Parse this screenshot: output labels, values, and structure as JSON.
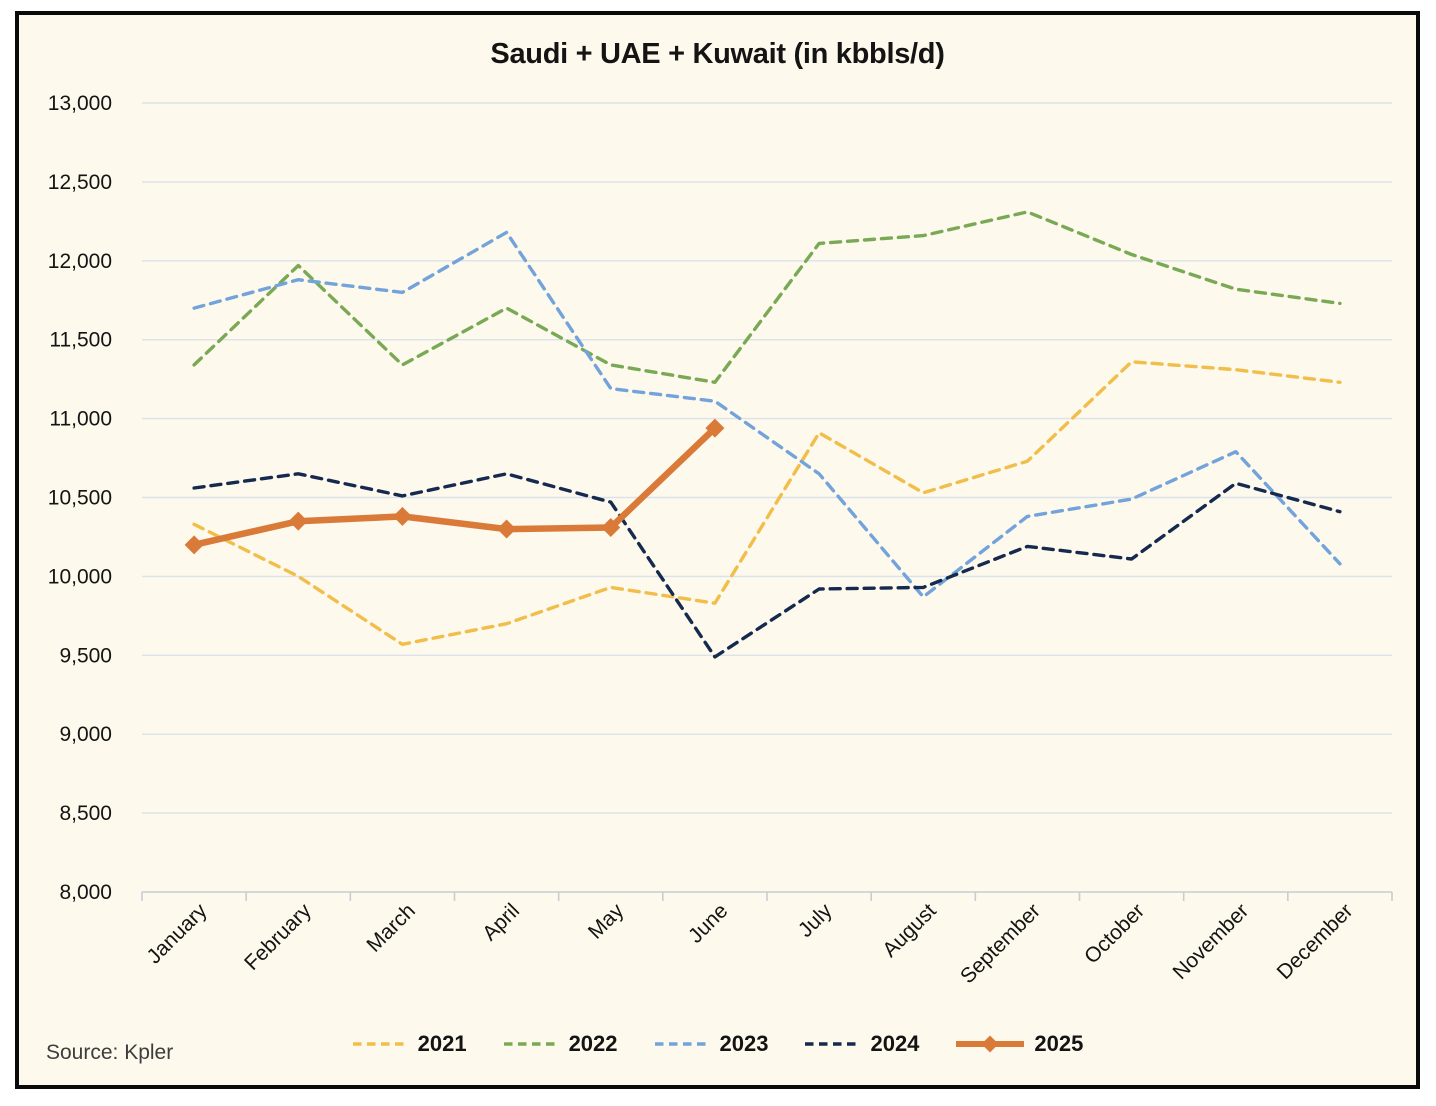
{
  "chart": {
    "source_label": "Source: Kpler",
    "background": "#FDF9EC",
    "frame_border_color": "#0A0A0A",
    "grid_color": "#DCE2E9",
    "axis_color": "#C7CDD5",
    "text_color": "#141414",
    "source_color": "#3D3D3D"
  },
  "chart_data": {
    "type": "line",
    "title": "Saudi + UAE + Kuwait (in kbbls/d)",
    "xlabel": "",
    "ylabel": "",
    "categories": [
      "January",
      "February",
      "March",
      "April",
      "May",
      "June",
      "July",
      "August",
      "September",
      "October",
      "November",
      "December"
    ],
    "series": [
      {
        "name": "2021",
        "color": "#F1BE4B",
        "style": "dashed",
        "values": [
          10330,
          10000,
          9570,
          9700,
          9930,
          9830,
          10910,
          10530,
          10730,
          11360,
          11310,
          11230
        ]
      },
      {
        "name": "2022",
        "color": "#7AA956",
        "style": "dashed",
        "values": [
          11340,
          11970,
          11340,
          11700,
          11340,
          11230,
          12110,
          12160,
          12310,
          12040,
          11820,
          11730
        ]
      },
      {
        "name": "2023",
        "color": "#73A3DA",
        "style": "dashed",
        "values": [
          11700,
          11880,
          11800,
          12180,
          11190,
          11110,
          10650,
          9870,
          10380,
          10490,
          10790,
          10080
        ]
      },
      {
        "name": "2024",
        "color": "#16294E",
        "style": "dashed",
        "values": [
          10560,
          10650,
          10510,
          10650,
          10470,
          9490,
          9920,
          9930,
          10190,
          10110,
          10590,
          10410
        ]
      },
      {
        "name": "2025",
        "color": "#DA7A38",
        "style": "solid-diamond",
        "values": [
          10200,
          10350,
          10380,
          10300,
          10310,
          10940
        ]
      }
    ],
    "ylim": [
      8000,
      13000
    ],
    "ytick_step": 500,
    "grid": true,
    "legend_position": "bottom"
  }
}
